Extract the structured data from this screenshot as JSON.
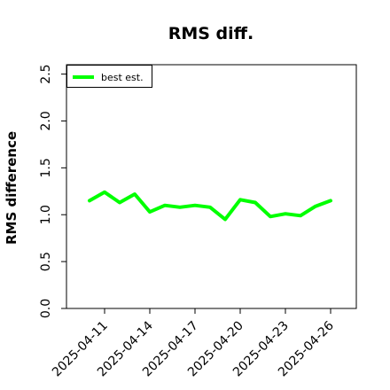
{
  "chart_data": {
    "type": "line",
    "title": "RMS diff.",
    "xlabel": "",
    "ylabel": "RMS difference",
    "x": [
      "2025-04-10",
      "2025-04-11",
      "2025-04-12",
      "2025-04-13",
      "2025-04-14",
      "2025-04-15",
      "2025-04-16",
      "2025-04-17",
      "2025-04-18",
      "2025-04-19",
      "2025-04-20",
      "2025-04-21",
      "2025-04-22",
      "2025-04-23",
      "2025-04-24",
      "2025-04-25",
      "2025-04-26"
    ],
    "xticks": [
      "2025-04-11",
      "2025-04-14",
      "2025-04-17",
      "2025-04-20",
      "2025-04-23",
      "2025-04-26"
    ],
    "yticks": [
      "0.0",
      "0.5",
      "1.0",
      "1.5",
      "2.0",
      "2.5"
    ],
    "ylim": [
      0,
      2.6
    ],
    "legend_position": "top-left",
    "grid": false,
    "series": [
      {
        "name": "best est.",
        "color": "#00ff00",
        "values": [
          1.15,
          1.24,
          1.13,
          1.22,
          1.03,
          1.1,
          1.08,
          1.1,
          1.08,
          0.95,
          1.16,
          1.13,
          0.98,
          1.01,
          0.99,
          1.09,
          1.15
        ]
      }
    ]
  }
}
